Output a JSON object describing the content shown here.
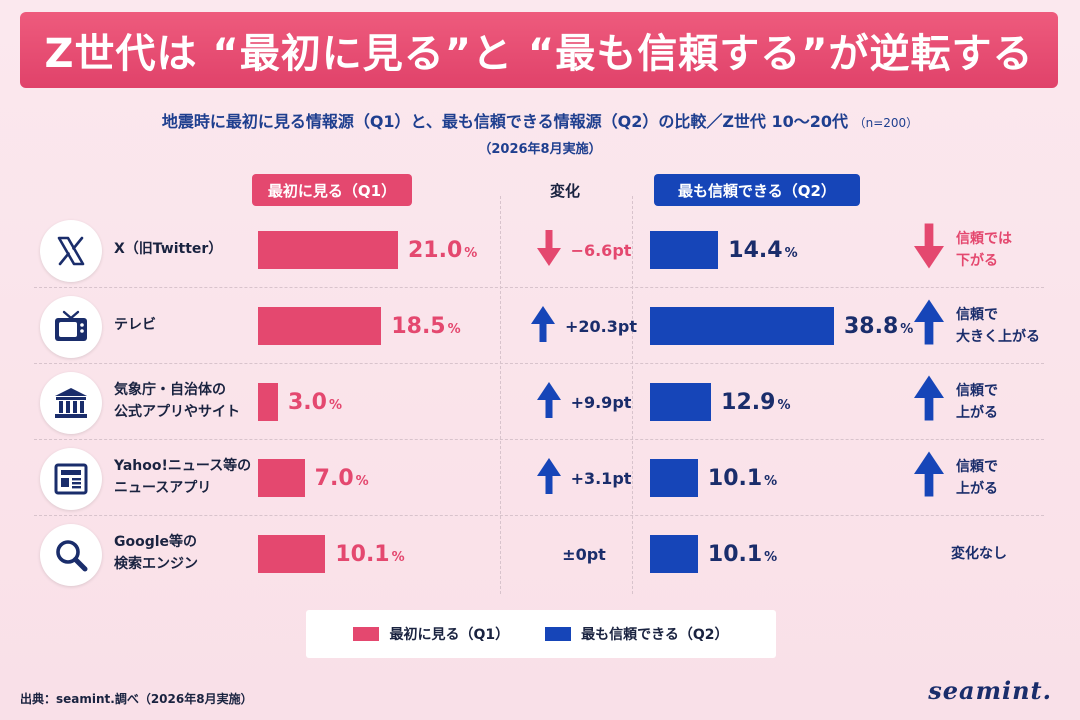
{
  "header": {
    "title": "Z世代は “最初に見る”と “最も信頼する”が逆転する",
    "subtitle": "地震時に最初に見る情報源（Q1）と、最も信頼できる情報源（Q2）の比較／Z世代 10〜20代",
    "sample": "（n=200）",
    "date": "（2026年8月実施）"
  },
  "columns": {
    "q1": "最初に見る（Q1）",
    "change": "変化",
    "q2": "最も信頼できる（Q2）"
  },
  "colors": {
    "q1": "#e4486f",
    "q2": "#1645b8",
    "banner": "#e0426a"
  },
  "chart_data": {
    "type": "bar",
    "categories": [
      "X（旧Twitter）",
      "テレビ",
      "気象庁・自治体の公式アプリやサイト",
      "Yahoo!ニュース等のニュースアプリ",
      "Google等の検索エンジン"
    ],
    "series": [
      {
        "name": "最初に見る（Q1）",
        "values": [
          21.0,
          18.5,
          3.0,
          7.0,
          10.1
        ]
      },
      {
        "name": "最も信頼できる（Q2）",
        "values": [
          14.4,
          38.8,
          12.9,
          10.1,
          10.1
        ]
      }
    ],
    "unit": "%"
  },
  "rows": [
    {
      "icon": "x-logo-icon",
      "label_lines": [
        "X（旧Twitter）"
      ],
      "q1": "21.0",
      "q2": "14.4",
      "change": "−6.6pt",
      "dir": "down",
      "note_lines": [
        "信頼では",
        "下がる"
      ]
    },
    {
      "icon": "tv-icon",
      "label_lines": [
        "テレビ"
      ],
      "q1": "18.5",
      "q2": "38.8",
      "change": "+20.3pt",
      "dir": "up",
      "note_lines": [
        "信頼で",
        "大きく上がる"
      ]
    },
    {
      "icon": "government-building-icon",
      "label_lines": [
        "気象庁・自治体の",
        "公式アプリやサイト"
      ],
      "q1": "3.0",
      "q2": "12.9",
      "change": "+9.9pt",
      "dir": "up",
      "note_lines": [
        "信頼で",
        "上がる"
      ]
    },
    {
      "icon": "newspaper-icon",
      "label_lines": [
        "Yahoo!ニュース等の",
        "ニュースアプリ"
      ],
      "q1": "7.0",
      "q2": "10.1",
      "change": "+3.1pt",
      "dir": "up",
      "note_lines": [
        "信頼で",
        "上がる"
      ]
    },
    {
      "icon": "search-icon",
      "label_lines": [
        "Google等の",
        "検索エンジン"
      ],
      "q1": "10.1",
      "q2": "10.1",
      "change": "±0pt",
      "dir": "flat",
      "note_lines": [
        "変化なし"
      ]
    }
  ],
  "pct_symbol": "%",
  "legend": {
    "q1": "最初に見る（Q1）",
    "q2": "最も信頼できる（Q2）"
  },
  "footer": {
    "source": "出典：seamint.調べ（2026年8月実施）",
    "brand": "seamint."
  }
}
